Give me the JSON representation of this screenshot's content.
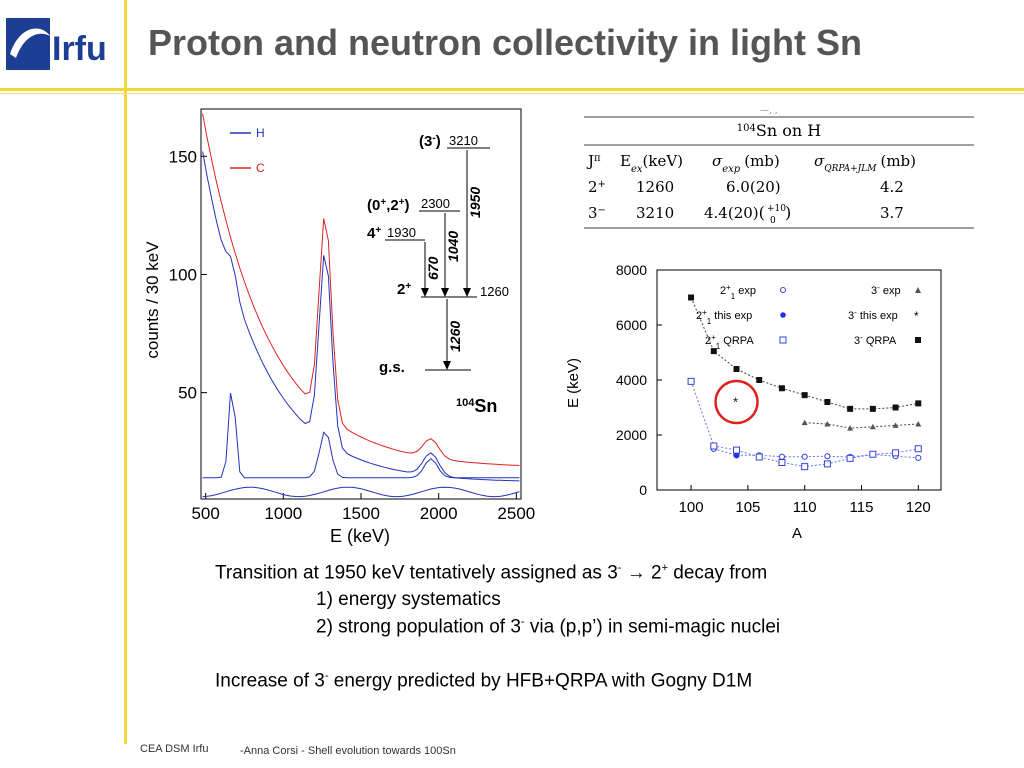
{
  "header": {
    "logo_text": "Irfu",
    "title": "Proton and neutron collectivity in light Sn"
  },
  "spectrum": {
    "xlabel": "E (keV)",
    "ylabel": "counts / 30 keV",
    "x_ticks": [
      "500",
      "1000",
      "1500",
      "2000",
      "2500"
    ],
    "y_ticks": [
      "50",
      "100",
      "150"
    ],
    "legend": [
      "H",
      "C"
    ],
    "level_scheme": {
      "nucleus_mass": "104",
      "nucleus": "Sn",
      "levels": [
        {
          "spin": "(3",
          "spin_sup": "-",
          "spin_end": ")",
          "energy": "3210"
        },
        {
          "spin": "(0",
          "spin_sup": "+",
          "spin_mid": ",2",
          "spin_sup2": "+",
          "spin_end": ")",
          "energy": "2300"
        },
        {
          "spin": "4",
          "spin_sup": "+",
          "spin_end": "",
          "energy": "1930"
        },
        {
          "spin": "2",
          "spin_sup": "+",
          "spin_end": "",
          "energy": "1260"
        },
        {
          "spin": "g.s.",
          "spin_sup": "",
          "spin_end": "",
          "energy": ""
        }
      ],
      "transitions": [
        "1950",
        "1040",
        "670",
        "1260"
      ]
    }
  },
  "table": {
    "cut_text": "—, ,",
    "title_mass": "104",
    "title_rest": "Sn on H",
    "headers": {
      "jpi": "J",
      "jpi_sup": "π",
      "eex": "E",
      "eex_sub": "ex",
      "eex_unit": "(keV)",
      "sexp": "σ",
      "sexp_sub": "exp",
      "sexp_unit": "(mb)",
      "sqrpa": "σ",
      "sqrpa_sub": "QRPA+JLM",
      "sqrpa_unit": "(mb)"
    },
    "rows": [
      {
        "j": "2",
        "j_sup": "+",
        "e": "1260",
        "sexp": "6.0(20)",
        "sqrpa": "4.2"
      },
      {
        "j": "3",
        "j_sup": "−",
        "e": "3210",
        "sexp": "4.4(20)",
        "sexp_err_up": "+10",
        "sexp_err_low": "0",
        "sqrpa": "3.7"
      }
    ]
  },
  "chart_data": {
    "type": "scatter",
    "xlabel": "A",
    "ylabel": "E (keV)",
    "xlim": [
      97,
      122
    ],
    "ylim": [
      0,
      8000
    ],
    "x_ticks": [
      "100",
      "105",
      "110",
      "115",
      "120"
    ],
    "y_ticks": [
      "0",
      "2000",
      "4000",
      "6000",
      "8000"
    ],
    "legend_left": [
      {
        "label": "2",
        "sup": "+",
        "sub": "1",
        "suffix": " exp"
      },
      {
        "label": "2",
        "sup": "+",
        "sub": "1",
        "suffix": " this exp"
      },
      {
        "label": "2",
        "sup": "+",
        "sub": "1",
        "suffix": " QRPA"
      }
    ],
    "legend_right": [
      {
        "label": "3",
        "sup": "-",
        "suffix": " exp"
      },
      {
        "label": "3",
        "sup": "-",
        "suffix": " this exp"
      },
      {
        "label": "3",
        "sup": "-",
        "suffix": " QRPA"
      }
    ],
    "series": [
      {
        "name": "2+1 exp",
        "x": [
          102,
          104,
          106,
          108,
          110,
          112,
          114,
          116,
          118,
          120
        ],
        "values": [
          1500,
          1260,
          1260,
          1210,
          1210,
          1230,
          1200,
          1290,
          1230,
          1170
        ]
      },
      {
        "name": "2+1 this exp",
        "x": [
          104
        ],
        "values": [
          1260
        ]
      },
      {
        "name": "2+1 QRPA",
        "x": [
          100,
          102,
          104,
          106,
          108,
          110,
          112,
          114,
          116,
          118,
          120
        ],
        "values": [
          3950,
          1600,
          1450,
          1200,
          1000,
          850,
          950,
          1150,
          1300,
          1350,
          1500
        ]
      },
      {
        "name": "3- exp",
        "x": [
          110,
          112,
          114,
          116,
          118,
          120
        ],
        "values": [
          2450,
          2400,
          2250,
          2300,
          2350,
          2400
        ]
      },
      {
        "name": "3- this exp",
        "x": [
          104
        ],
        "values": [
          3210
        ]
      },
      {
        "name": "3- QRPA",
        "x": [
          100,
          102,
          104,
          106,
          108,
          110,
          112,
          114,
          116,
          118,
          120
        ],
        "values": [
          7000,
          5050,
          4400,
          4000,
          3700,
          3450,
          3200,
          2950,
          2950,
          3000,
          3150
        ]
      }
    ],
    "highlight": {
      "x": 104,
      "value": 3200,
      "color": "#e02020"
    }
  },
  "text": {
    "line1_pre": "Transition at 1950 keV tentatively assigned as 3",
    "line1_sup1": "-",
    "line1_mid": " → 2",
    "line1_sup2": "+",
    "line1_post": " decay  from",
    "line2": "1) energy systematics",
    "line3_pre": "2) strong population of 3",
    "line3_sup": "-",
    "line3_post": " via (p,p’) in semi-magic nuclei",
    "line4_pre": "Increase of 3",
    "line4_sup": "-",
    "line4_post": " energy predicted by HFB+QRPA with Gogny D1M"
  },
  "footer": {
    "left": "CEA DSM Irfu",
    "right": "-Anna Corsi -   Shell evolution towards 100Sn"
  },
  "colors": {
    "accent": "#f2d63b",
    "title": "#555555",
    "logo_blue": "#1c3f95",
    "h_line": "#2233bb",
    "c_line": "#dd2222"
  }
}
